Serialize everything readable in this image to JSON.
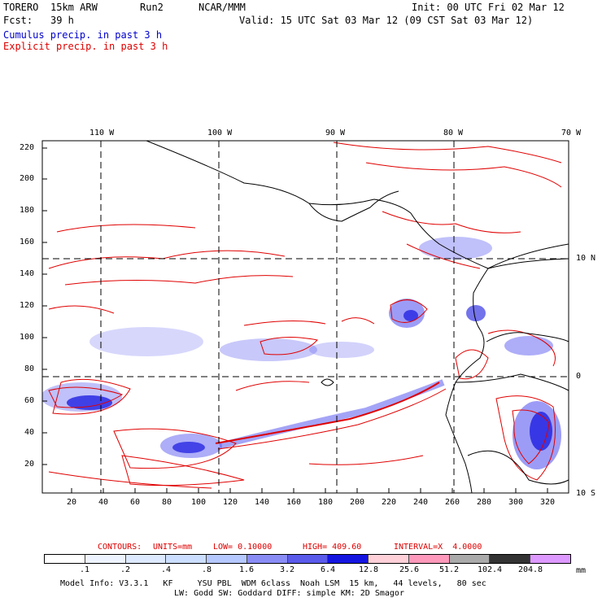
{
  "header": {
    "model": "TORERO",
    "resolution": "15km ARW",
    "run": "Run2",
    "org": "NCAR/MMM",
    "init": "Init: 00 UTC Fri 02 Mar 12",
    "fcst_label": "Fcst:",
    "fcst_value": "39 h",
    "valid": "Valid: 15 UTC Sat 03 Mar 12 (09 CST Sat 03 Mar 12)",
    "line_cumulus": "Cumulus precip. in past 3 h",
    "line_explicit": "Explicit precip. in past 3 h"
  },
  "map": {
    "lon_labels": [
      "110 W",
      "100 W",
      "90 W",
      "80 W",
      "70 W"
    ],
    "lat_labels": [
      "10 N",
      "0",
      "10 S"
    ],
    "y_ticks": [
      "220",
      "200",
      "180",
      "160",
      "140",
      "120",
      "100",
      "80",
      "60",
      "40",
      "20"
    ],
    "x_ticks": [
      "20",
      "40",
      "60",
      "80",
      "100",
      "120",
      "140",
      "160",
      "180",
      "200",
      "220",
      "240",
      "260",
      "280",
      "300",
      "320"
    ],
    "colors": {
      "cumulus": "#4a4af0",
      "explicit": "#e00000",
      "grid": "#000000"
    }
  },
  "contours": {
    "label": "CONTOURS:",
    "units": "UNITS=mm",
    "low": "LOW= 0.10000",
    "high": "HIGH= 409.60",
    "interval": "INTERVAL=X  4.0000"
  },
  "colorbar": {
    "colors": [
      "#ffffff",
      "#eef4ff",
      "#dde9ff",
      "#ccdeff",
      "#b5c8ff",
      "#8a8cf5",
      "#5a5aeb",
      "#1515e0",
      "#ffd0d8",
      "#ff99bb",
      "#aaaaaa",
      "#333333",
      "#dd99ff"
    ],
    "labels": [
      ".1",
      ".2",
      ".4",
      ".8",
      "1.6",
      "3.2",
      "6.4",
      "12.8",
      "25.6",
      "51.2",
      "102.4",
      "204.8"
    ],
    "unit": "mm"
  },
  "footer": {
    "line1": "Model Info: V3.3.1   KF     YSU PBL  WDM 6class  Noah LSM  15 km,   44 levels,   80 sec",
    "line2": "LW: Godd SW: Goddard DIFF: simple KM: 2D Smagor"
  }
}
